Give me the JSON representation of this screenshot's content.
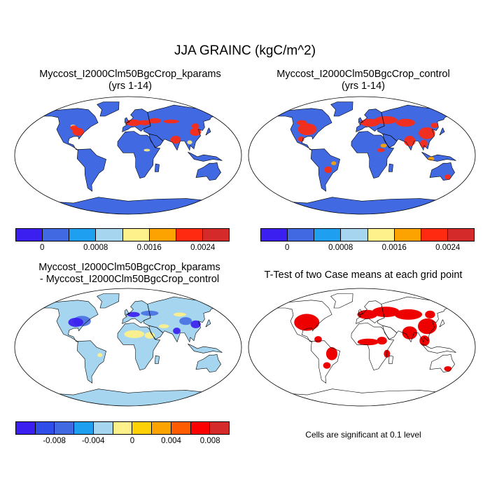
{
  "figure": {
    "title": "JJA GRAINC (kgC/m^2)"
  },
  "panels": {
    "kparams": {
      "title_line1": "Myccost_I2000Clm50BgcCrop_kparams",
      "title_line2": "(yrs 1-14)"
    },
    "control": {
      "title_line1": "Myccost_I2000Clm50BgcCrop_control",
      "title_line2": "(yrs 1-14)"
    },
    "diff": {
      "title_line1": "Myccost_I2000Clm50BgcCrop_kparams",
      "title_line2": "- Myccost_I2000Clm50BgcCrop_control"
    },
    "ttest": {
      "title_line1": "T-Test of two Case means at each grid point",
      "note": "Cells are significant at 0.1 level"
    }
  },
  "colors": {
    "ocean": "#ffffff",
    "coast": "#000000",
    "sig": "#ee0000"
  },
  "chart_data": [
    {
      "type": "heatmap",
      "panel": "kparams",
      "colorbar": {
        "colors": [
          "#3b1ff0",
          "#4169e1",
          "#1e9ff0",
          "#a6d5ef",
          "#fef08a",
          "#fca301",
          "#ff2a0f",
          "#d42a2a"
        ],
        "tick_labels": [
          "0",
          "0.0008",
          "0.0016",
          "0.0024"
        ],
        "ticks": [
          0,
          0.0008,
          0.0016,
          0.0024
        ]
      },
      "land_value": 0,
      "crop_regions": [
        {
          "region": "Eastern North America",
          "value": 0.0024
        },
        {
          "region": "Europe",
          "value": 0.0024
        },
        {
          "region": "East Asia",
          "value": 0.0024
        },
        {
          "region": "South Asia",
          "value": 0.0024
        }
      ]
    },
    {
      "type": "heatmap",
      "panel": "control",
      "colorbar": {
        "colors": [
          "#3b1ff0",
          "#4169e1",
          "#1e9ff0",
          "#a6d5ef",
          "#fef08a",
          "#fca301",
          "#ff2a0f",
          "#d42a2a"
        ],
        "tick_labels": [
          "0",
          "0.0008",
          "0.0016",
          "0.0024"
        ],
        "ticks": [
          0,
          0.0008,
          0.0016,
          0.0024
        ]
      },
      "land_value": 0,
      "crop_regions": [
        {
          "region": "North America",
          "value": 0.0024
        },
        {
          "region": "Europe and Russia",
          "value": 0.0024
        },
        {
          "region": "East Asia",
          "value": 0.0024
        },
        {
          "region": "South Asia",
          "value": 0.0024
        }
      ]
    },
    {
      "type": "heatmap",
      "panel": "diff",
      "colorbar": {
        "colors": [
          "#3b1ff0",
          "#2f4ee8",
          "#4169e1",
          "#1e9ff0",
          "#a6d5ef",
          "#fef08a",
          "#fed106",
          "#fca301",
          "#ff5c00",
          "#ff0000",
          "#d42a2a"
        ],
        "tick_labels": [
          "-0.008",
          "-0.004",
          "0",
          "0.004",
          "0.008"
        ],
        "ticks": [
          -0.008,
          -0.004,
          0,
          0.004,
          0.008
        ]
      },
      "land_value": 0
    },
    {
      "type": "heatmap",
      "panel": "ttest",
      "significance_level": 0.1
    }
  ]
}
